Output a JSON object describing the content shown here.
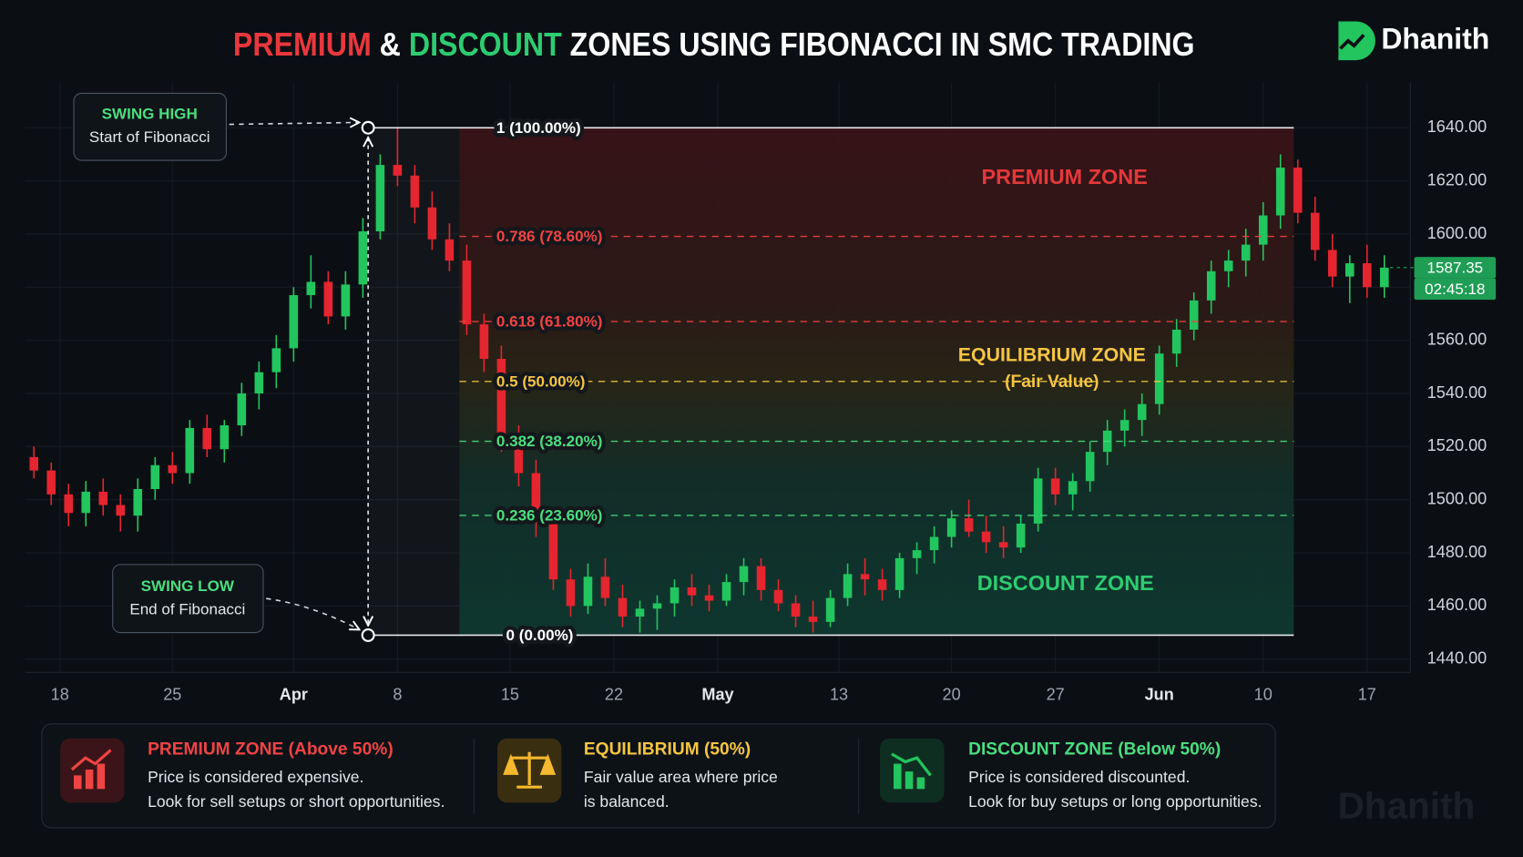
{
  "header": {
    "title_parts": [
      {
        "text": "PREMIUM",
        "color": "#e8383d"
      },
      {
        "text": "&",
        "color": "#ffffff"
      },
      {
        "text": "DISCOUNT",
        "color": "#2ecc71"
      },
      {
        "text": "ZONES USING FIBONACCI IN SMC TRADING",
        "color": "#ffffff"
      }
    ],
    "brand": "Dhanith"
  },
  "chart_data": {
    "type": "candlestick",
    "up_color": "#22c55e",
    "down_color": "#e5252f",
    "grid": true,
    "x": [
      0,
      1,
      2,
      3,
      4,
      5,
      6,
      7,
      8,
      9,
      10,
      11,
      12,
      13,
      14,
      15,
      16,
      17,
      18,
      19,
      20,
      21,
      22,
      23,
      24,
      25,
      26,
      27,
      28,
      29,
      30,
      31,
      32,
      33,
      34,
      35,
      36,
      37,
      38,
      39,
      40,
      41,
      42,
      43,
      44,
      45,
      46,
      47,
      48,
      49,
      50,
      51,
      52,
      53,
      54,
      55,
      56,
      57,
      58,
      59,
      60,
      61,
      62,
      63,
      64,
      65,
      66,
      67,
      68,
      69,
      70,
      71,
      72,
      73,
      74,
      75,
      76,
      77,
      78
    ],
    "open": [
      1516,
      1511,
      1502,
      1495,
      1503,
      1498,
      1494,
      1504,
      1513,
      1510,
      1527,
      1519,
      1528,
      1540,
      1548,
      1557,
      1577,
      1582,
      1569,
      1581,
      1601,
      1626,
      1622,
      1610,
      1598,
      1590,
      1566,
      1553,
      1522,
      1510,
      1492,
      1470,
      1460,
      1471,
      1463,
      1456,
      1459,
      1461,
      1467,
      1464,
      1462,
      1469,
      1475,
      1466,
      1461,
      1456,
      1454,
      1463,
      1472,
      1470,
      1466,
      1478,
      1481,
      1486,
      1493,
      1488,
      1484,
      1482,
      1491,
      1508,
      1502,
      1507,
      1518,
      1526,
      1530,
      1536,
      1555,
      1564,
      1575,
      1586,
      1590,
      1596,
      1607,
      1625,
      1608,
      1594,
      1584,
      1589,
      1580
    ],
    "high": [
      1520,
      1514,
      1506,
      1507,
      1508,
      1502,
      1508,
      1516,
      1518,
      1530,
      1532,
      1530,
      1544,
      1552,
      1562,
      1580,
      1592,
      1586,
      1586,
      1606,
      1630,
      1640,
      1626,
      1616,
      1604,
      1596,
      1570,
      1558,
      1528,
      1515,
      1496,
      1474,
      1476,
      1478,
      1468,
      1462,
      1464,
      1470,
      1472,
      1468,
      1472,
      1478,
      1478,
      1470,
      1464,
      1462,
      1466,
      1476,
      1478,
      1474,
      1480,
      1484,
      1490,
      1496,
      1500,
      1494,
      1490,
      1494,
      1512,
      1512,
      1510,
      1522,
      1530,
      1534,
      1540,
      1558,
      1568,
      1578,
      1590,
      1594,
      1602,
      1612,
      1630,
      1628,
      1614,
      1600,
      1592,
      1596,
      1592
    ],
    "low": [
      1508,
      1498,
      1490,
      1490,
      1494,
      1488,
      1488,
      1500,
      1506,
      1506,
      1516,
      1514,
      1524,
      1534,
      1542,
      1552,
      1572,
      1566,
      1564,
      1576,
      1598,
      1618,
      1604,
      1594,
      1586,
      1562,
      1548,
      1518,
      1505,
      1486,
      1466,
      1456,
      1457,
      1460,
      1452,
      1450,
      1451,
      1456,
      1460,
      1458,
      1460,
      1464,
      1462,
      1458,
      1452,
      1450,
      1452,
      1460,
      1464,
      1462,
      1463,
      1472,
      1476,
      1482,
      1486,
      1480,
      1478,
      1480,
      1488,
      1498,
      1496,
      1503,
      1513,
      1520,
      1524,
      1532,
      1550,
      1560,
      1570,
      1580,
      1584,
      1590,
      1602,
      1604,
      1590,
      1580,
      1574,
      1576,
      1576
    ],
    "close": [
      1511,
      1502,
      1495,
      1503,
      1498,
      1494,
      1504,
      1513,
      1510,
      1527,
      1519,
      1528,
      1540,
      1548,
      1557,
      1577,
      1582,
      1569,
      1581,
      1601,
      1626,
      1622,
      1610,
      1598,
      1590,
      1566,
      1553,
      1522,
      1510,
      1492,
      1470,
      1460,
      1471,
      1463,
      1456,
      1459,
      1461,
      1467,
      1464,
      1462,
      1469,
      1475,
      1466,
      1461,
      1456,
      1454,
      1463,
      1472,
      1470,
      1466,
      1478,
      1481,
      1486,
      1493,
      1488,
      1484,
      1482,
      1491,
      1508,
      1502,
      1507,
      1518,
      1526,
      1530,
      1536,
      1555,
      1564,
      1575,
      1586,
      1590,
      1596,
      1607,
      1625,
      1608,
      1594,
      1584,
      1589,
      1580,
      1587.35
    ],
    "countdown": "02:45:18",
    "xlim": [
      -0.5,
      79.5
    ],
    "xticks": [
      {
        "value": 1.5,
        "label": "18"
      },
      {
        "value": 8,
        "label": "25"
      },
      {
        "value": 15,
        "label": "Apr"
      },
      {
        "value": 21,
        "label": "8"
      },
      {
        "value": 27.5,
        "label": "15"
      },
      {
        "value": 33.5,
        "label": "22"
      },
      {
        "value": 39.5,
        "label": "May"
      },
      {
        "value": 46.5,
        "label": "13"
      },
      {
        "value": 53,
        "label": "20"
      },
      {
        "value": 59,
        "label": "27"
      },
      {
        "value": 65,
        "label": "Jun"
      },
      {
        "value": 71,
        "label": "10"
      },
      {
        "value": 77,
        "label": "17"
      }
    ],
    "ylim": [
      1435,
      1657
    ],
    "yticks": [
      {
        "value": 1440,
        "label": "1440.00"
      },
      {
        "value": 1460,
        "label": "1460.00"
      },
      {
        "value": 1480,
        "label": "1480.00"
      },
      {
        "value": 1500,
        "label": "1500.00"
      },
      {
        "value": 1520,
        "label": "1520.00"
      },
      {
        "value": 1540,
        "label": "1540.00"
      },
      {
        "value": 1560,
        "label": "1560.00"
      },
      {
        "value": 1580,
        "label": "1580.00"
      },
      {
        "value": 1600,
        "label": "1600.00"
      },
      {
        "value": 1620,
        "label": "1620.00"
      },
      {
        "value": 1640,
        "label": "1640.00"
      }
    ],
    "fib": {
      "high": 1640,
      "low": 1449,
      "levels": [
        {
          "value": 1,
          "label": "1 (100.00%)",
          "color": "#ffffff",
          "style": "solid"
        },
        {
          "value": 0.786,
          "label": "0.786 (78.60%)",
          "color": "#ef4444",
          "style": "dashed"
        },
        {
          "value": 0.618,
          "label": "0.618 (61.80%)",
          "color": "#ef4444",
          "style": "dashed"
        },
        {
          "value": 0.5,
          "label": "0.5 (50.00%)",
          "color": "#f5c542",
          "style": "dashed"
        },
        {
          "value": 0.382,
          "label": "0.382 (38.20%)",
          "color": "#4ade80",
          "style": "dashed"
        },
        {
          "value": 0.236,
          "label": "0.236 (23.60%)",
          "color": "#4ade80",
          "style": "dashed"
        },
        {
          "value": 0,
          "label": "0 (0.00%)",
          "color": "#ffffff",
          "style": "solid"
        }
      ]
    },
    "zone_labels": [
      "PREMIUM ZONE",
      "EQUILIBRIUM ZONE",
      "(Fair Value)",
      "DISCOUNT ZONE"
    ],
    "annotations": [
      {
        "title": "SWING HIGH",
        "text": "Start of Fibonacci"
      },
      {
        "title": "SWING LOW",
        "text": "End of Fibonacci"
      }
    ]
  },
  "info_cards": [
    {
      "title": "PREMIUM ZONE (Above 50%)",
      "color": "#ef4444",
      "lines": [
        "Price is considered expensive.",
        "Look for sell setups or short opportunities."
      ]
    },
    {
      "title": "EQUILIBRIUM (50%)",
      "color": "#f5c542",
      "lines": [
        "Fair value area where price",
        "is balanced."
      ]
    },
    {
      "title": "DISCOUNT ZONE (Below 50%)",
      "color": "#4ade80",
      "lines": [
        "Price is considered discounted.",
        "Look for buy setups or long opportunities."
      ]
    }
  ]
}
